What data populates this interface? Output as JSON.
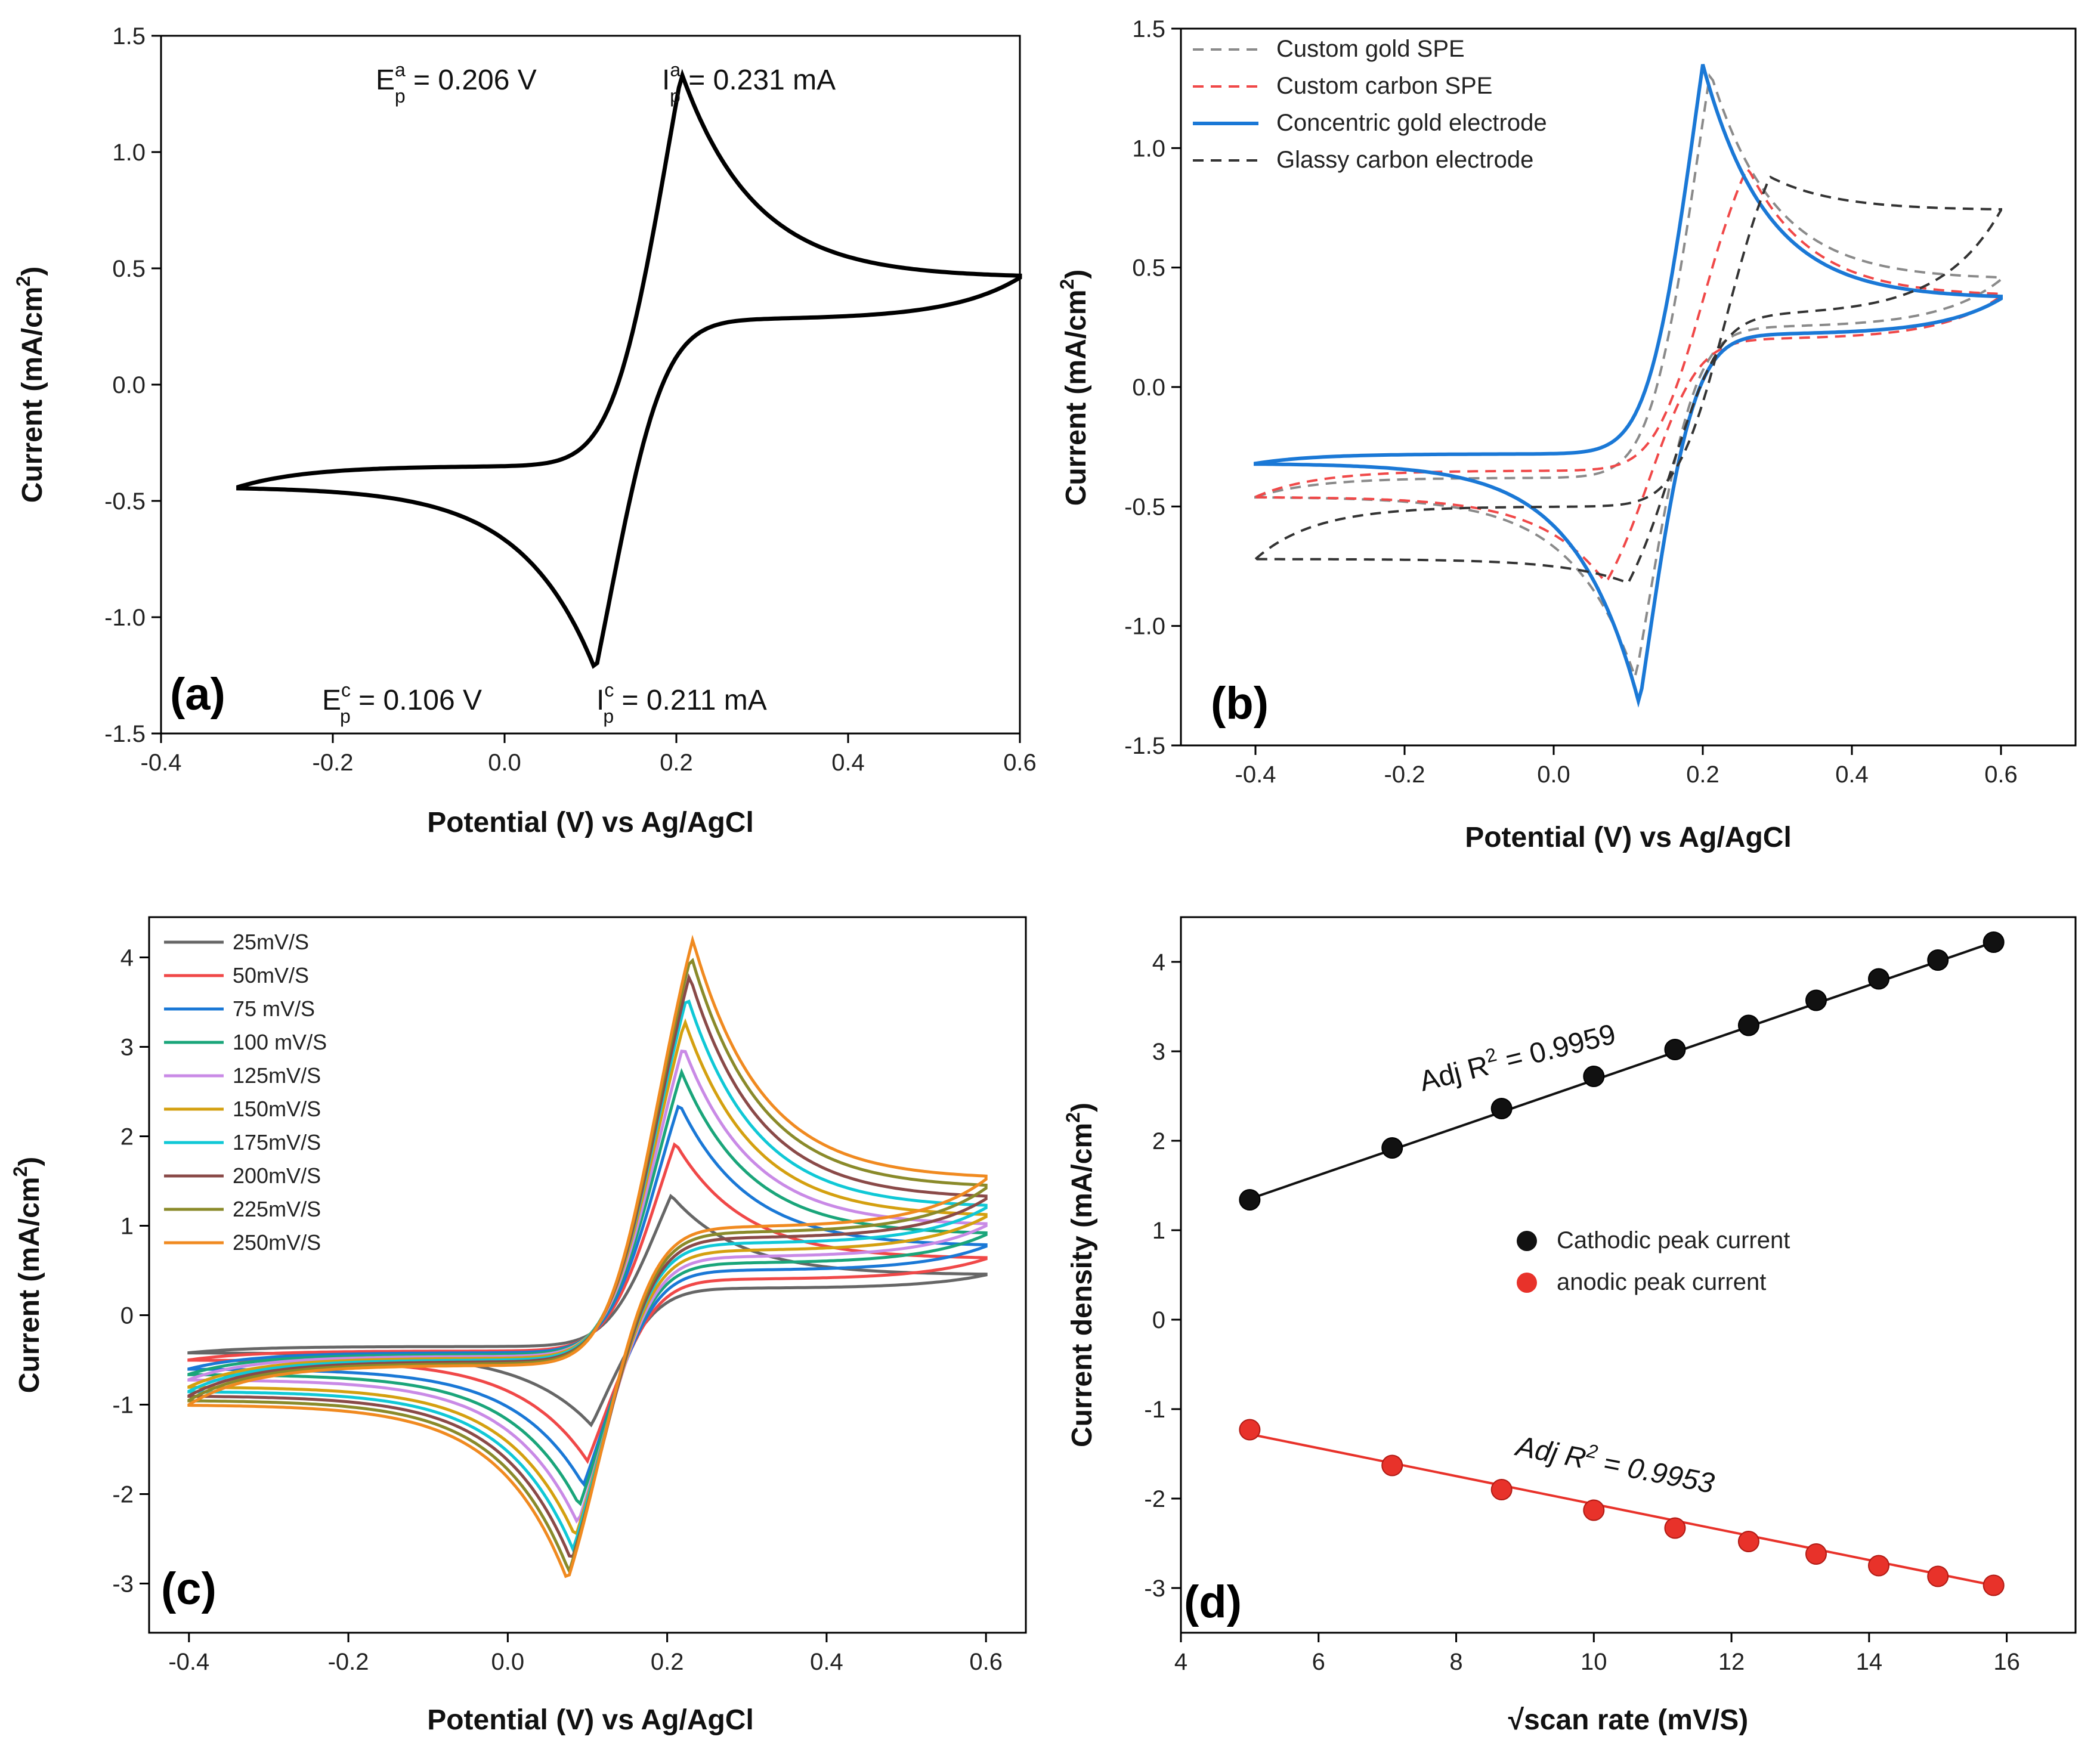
{
  "chart_data": [
    {
      "panel": "(a)",
      "type": "line",
      "title": "",
      "xlabel": "Potential (V) vs Ag/AgCl",
      "ylabel": "Current (mA/cm",
      "ylabel_sup": "2",
      "ylabel_close": ")",
      "xlim": [
        -0.4,
        0.6
      ],
      "ylim": [
        -1.5,
        1.5
      ],
      "xticks": [
        "-0.4",
        "-0.2",
        "0.0",
        "0.2",
        "0.4",
        "0.6"
      ],
      "yticks": [
        "-1.5",
        "-1.0",
        "-0.5",
        "0.0",
        "0.5",
        "1.0",
        "1.5"
      ],
      "cv": {
        "emin": -0.31,
        "emax": 0.6,
        "epa": 0.206,
        "epc": 0.106,
        "ipa": 1.34,
        "ipc": -1.23,
        "iend": 0.46,
        "istart": -0.44,
        "ibase_fwd": -0.35,
        "ibase_rev": 0.28
      },
      "color": "#000000",
      "annotations": {
        "epa": {
          "main": "E",
          "sup": "a",
          "sub": "p",
          "rest": " = 0.206 V"
        },
        "ipa": {
          "main": "I",
          "sup": "a",
          "sub": "p",
          "rest": " = 0.231 mA"
        },
        "epc": {
          "main": "E",
          "sup": "c",
          "sub": "p",
          "rest": " = 0.106 V"
        },
        "ipc": {
          "main": "I",
          "sup": "c",
          "sub": "p",
          "rest": " = 0.211 mA"
        }
      }
    },
    {
      "panel": "(b)",
      "type": "line",
      "xlabel": "Potential (V) vs Ag/AgCl",
      "ylabel": "Current (mA/cm",
      "ylabel_sup": "2",
      "ylabel_close": ")",
      "xlim": [
        -0.5,
        0.7
      ],
      "ylim": [
        -1.5,
        1.5
      ],
      "xticks": [
        "-0.4",
        "-0.2",
        "0.0",
        "0.2",
        "0.4",
        "0.6"
      ],
      "yticks": [
        "-1.5",
        "-1.0",
        "-0.5",
        "0.0",
        "0.5",
        "1.0",
        "1.5"
      ],
      "series": [
        {
          "name": "Custom gold SPE",
          "color": "#8a8a8a",
          "dash": true,
          "cv": {
            "emin": -0.4,
            "emax": 0.6,
            "epa": 0.21,
            "epc": 0.11,
            "ipa": 1.32,
            "ipc": -1.22,
            "iend": 0.45,
            "istart": -0.46,
            "ibase_fwd": -0.38,
            "ibase_rev": 0.25
          }
        },
        {
          "name": "Custom carbon SPE",
          "color": "#f04848",
          "dash": true,
          "cv": {
            "emin": -0.4,
            "emax": 0.6,
            "epa": 0.26,
            "epc": 0.07,
            "ipa": 0.92,
            "ipc": -0.82,
            "iend": 0.38,
            "istart": -0.46,
            "ibase_fwd": -0.35,
            "ibase_rev": 0.2
          }
        },
        {
          "name": "Concentric gold electrode",
          "color": "#1a78d6",
          "dash": false,
          "cv": {
            "emin": -0.4,
            "emax": 0.6,
            "epa": 0.2,
            "epc": 0.115,
            "ipa": 1.35,
            "ipc": -1.33,
            "iend": 0.37,
            "istart": -0.32,
            "ibase_fwd": -0.28,
            "ibase_rev": 0.22
          }
        },
        {
          "name": "Glassy carbon electrode",
          "color": "#333333",
          "dash": true,
          "cv": {
            "emin": -0.4,
            "emax": 0.6,
            "epa": 0.29,
            "epc": 0.1,
            "ipa": 0.88,
            "ipc": -0.82,
            "iend": 0.74,
            "istart": -0.72,
            "ibase_fwd": -0.5,
            "ibase_rev": 0.3
          }
        }
      ]
    },
    {
      "panel": "(c)",
      "type": "line",
      "xlabel": "Potential (V) vs Ag/AgCl",
      "ylabel": "Current (mA/cm",
      "ylabel_sup": "2",
      "ylabel_close": ")",
      "xlim": [
        -0.45,
        0.65
      ],
      "ylim": [
        -3.55,
        4.45
      ],
      "xticks": [
        "-0.4",
        "-0.2",
        "0.0",
        "0.2",
        "0.4",
        "0.6"
      ],
      "yticks": [
        "-3",
        "-2",
        "-1",
        "0",
        "1",
        "2",
        "3",
        "4"
      ],
      "series": [
        {
          "name": "25mV/S",
          "color": "#666666",
          "cv": {
            "emin": -0.4,
            "emax": 0.6,
            "epa": 0.205,
            "epc": 0.105,
            "ipa": 1.34,
            "ipc": -1.23,
            "iend": 0.45,
            "istart": -0.42,
            "ibase_fwd": -0.35,
            "ibase_rev": 0.3
          }
        },
        {
          "name": "50mV/S",
          "color": "#f04848",
          "cv": {
            "emin": -0.4,
            "emax": 0.6,
            "epa": 0.21,
            "epc": 0.1,
            "ipa": 1.93,
            "ipc": -1.63,
            "iend": 0.63,
            "istart": -0.5,
            "ibase_fwd": -0.4,
            "ibase_rev": 0.4
          }
        },
        {
          "name": "75 mV/S",
          "color": "#1a78d6",
          "cv": {
            "emin": -0.4,
            "emax": 0.6,
            "epa": 0.215,
            "epc": 0.095,
            "ipa": 2.37,
            "ipc": -1.9,
            "iend": 0.77,
            "istart": -0.6,
            "ibase_fwd": -0.42,
            "ibase_rev": 0.5
          }
        },
        {
          "name": "100 mV/S",
          "color": "#1aa57a",
          "cv": {
            "emin": -0.4,
            "emax": 0.6,
            "epa": 0.218,
            "epc": 0.09,
            "ipa": 2.72,
            "ipc": -2.13,
            "iend": 0.9,
            "istart": -0.66,
            "ibase_fwd": -0.44,
            "ibase_rev": 0.58
          }
        },
        {
          "name": "125mV/S",
          "color": "#c98ae6",
          "cv": {
            "emin": -0.4,
            "emax": 0.6,
            "epa": 0.22,
            "epc": 0.088,
            "ipa": 3.01,
            "ipc": -2.33,
            "iend": 1.0,
            "istart": -0.72,
            "ibase_fwd": -0.46,
            "ibase_rev": 0.65
          }
        },
        {
          "name": "150mV/S",
          "color": "#d4a010",
          "cv": {
            "emin": -0.4,
            "emax": 0.6,
            "epa": 0.222,
            "epc": 0.085,
            "ipa": 3.29,
            "ipc": -2.48,
            "iend": 1.1,
            "istart": -0.8,
            "ibase_fwd": -0.48,
            "ibase_rev": 0.72
          }
        },
        {
          "name": "175mV/S",
          "color": "#10c8d6",
          "cv": {
            "emin": -0.4,
            "emax": 0.6,
            "epa": 0.225,
            "epc": 0.082,
            "ipa": 3.57,
            "ipc": -2.62,
            "iend": 1.2,
            "istart": -0.85,
            "ibase_fwd": -0.5,
            "ibase_rev": 0.8
          }
        },
        {
          "name": "200mV/S",
          "color": "#8a4a48",
          "cv": {
            "emin": -0.4,
            "emax": 0.6,
            "epa": 0.228,
            "epc": 0.08,
            "ipa": 3.8,
            "ipc": -2.75,
            "iend": 1.3,
            "istart": -0.9,
            "ibase_fwd": -0.52,
            "ibase_rev": 0.86
          }
        },
        {
          "name": "225mV/S",
          "color": "#8a8a2a",
          "cv": {
            "emin": -0.4,
            "emax": 0.6,
            "epa": 0.23,
            "epc": 0.077,
            "ipa": 4.02,
            "ipc": -2.87,
            "iend": 1.42,
            "istart": -0.95,
            "ibase_fwd": -0.54,
            "ibase_rev": 0.92
          }
        },
        {
          "name": "250mV/S",
          "color": "#f08a20",
          "cv": {
            "emin": -0.4,
            "emax": 0.6,
            "epa": 0.232,
            "epc": 0.075,
            "ipa": 4.2,
            "ipc": -2.97,
            "iend": 1.52,
            "istart": -1.0,
            "ibase_fwd": -0.56,
            "ibase_rev": 0.98
          }
        }
      ]
    },
    {
      "panel": "(d)",
      "type": "scatter",
      "xlabel": "√scan rate (mV/S)",
      "ylabel": "Current density (mA/cm",
      "ylabel_sup": "2",
      "ylabel_close": ")",
      "xlim": [
        4,
        17
      ],
      "ylim": [
        -3.5,
        4.5
      ],
      "xticks": [
        "4",
        "6",
        "8",
        "10",
        "12",
        "14",
        "16"
      ],
      "yticks": [
        "-3",
        "-2",
        "-1",
        "0",
        "1",
        "2",
        "3",
        "4"
      ],
      "x": [
        5.0,
        7.07,
        8.66,
        10.0,
        11.18,
        12.25,
        13.23,
        14.14,
        15.0,
        15.81
      ],
      "series": [
        {
          "name": "Cathodic peak current",
          "color": "#111111",
          "values": [
            1.34,
            1.92,
            2.36,
            2.72,
            3.02,
            3.29,
            3.57,
            3.81,
            4.02,
            4.22
          ],
          "fit": [
            1.35,
            4.22
          ],
          "fit_label": {
            "main": "Adj R",
            "sup": "2",
            "rest": " = 0.9959"
          }
        },
        {
          "name": "anodic peak current",
          "color": "#e8322a",
          "values": [
            -1.23,
            -1.63,
            -1.9,
            -2.13,
            -2.33,
            -2.48,
            -2.62,
            -2.75,
            -2.87,
            -2.97
          ],
          "fit": [
            -1.28,
            -2.97
          ],
          "fit_label": {
            "main": "Adj R",
            "sup": "2",
            "rest": " = 0.9953"
          }
        }
      ]
    }
  ]
}
